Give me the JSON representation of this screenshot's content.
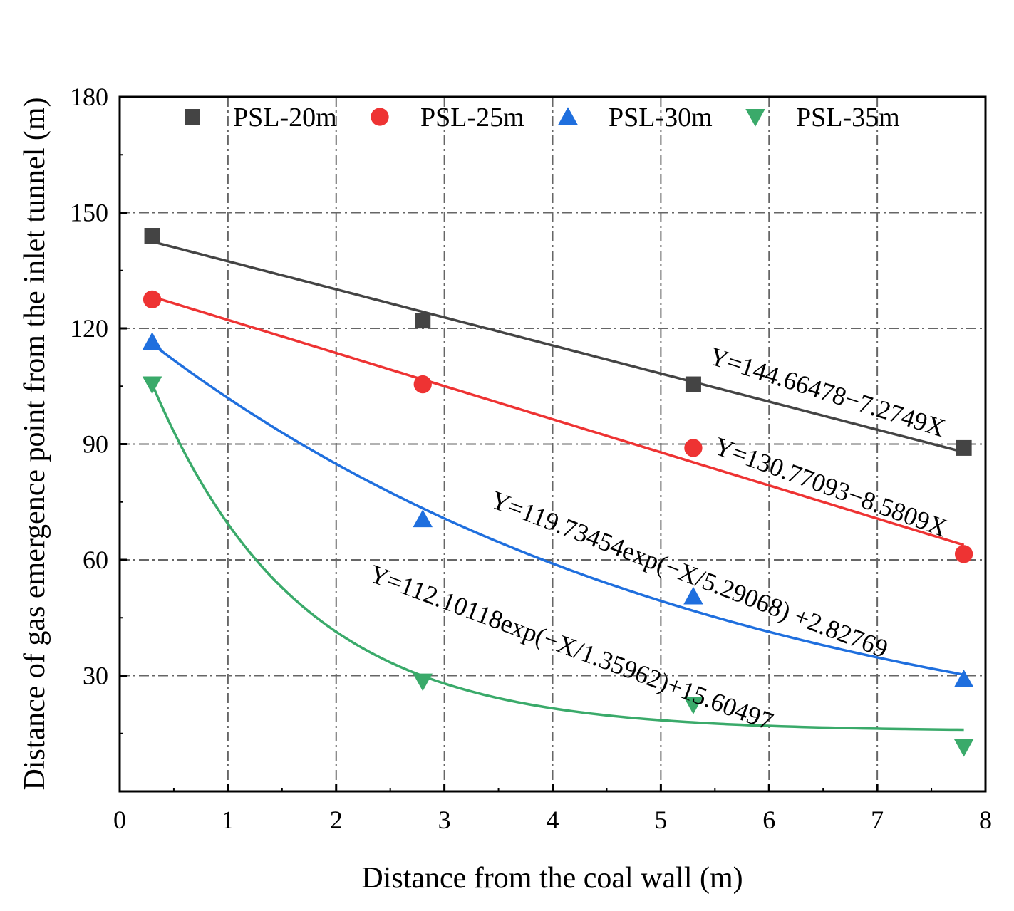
{
  "chart_data": {
    "type": "scatter",
    "title": "",
    "xlabel": "Distance from the coal wall (m)",
    "ylabel": "Distance of gas emergence point from the inlet tunnel (m)",
    "xlim": [
      0,
      8
    ],
    "ylim": [
      0,
      180
    ],
    "xticks": [
      0,
      1,
      2,
      3,
      4,
      5,
      6,
      7,
      8
    ],
    "yticks": [
      30,
      60,
      90,
      120,
      150,
      180
    ],
    "grid": true,
    "legend_position": "top",
    "series": [
      {
        "name": "PSL-20m",
        "marker": "square",
        "color": "#444444",
        "x": [
          0.3,
          2.8,
          5.3,
          7.8
        ],
        "y": [
          144,
          122,
          105.5,
          89
        ],
        "fit": {
          "kind": "linear",
          "a": 144.66478,
          "b": -7.2749
        },
        "equation": "Y=144.66478−7.2749X"
      },
      {
        "name": "PSL-25m",
        "marker": "circle",
        "color": "#EE3333",
        "x": [
          0.3,
          2.8,
          5.3,
          7.8
        ],
        "y": [
          127.5,
          105.5,
          89,
          61.5
        ],
        "fit": {
          "kind": "linear",
          "a": 130.77093,
          "b": -8.5809
        },
        "equation": "Y=130.77093−8.5809X"
      },
      {
        "name": "PSL-30m",
        "marker": "triangle-up",
        "color": "#1F6FDE",
        "x": [
          0.3,
          2.8,
          5.3,
          7.8
        ],
        "y": [
          116.5,
          70.5,
          50.5,
          29
        ],
        "fit": {
          "kind": "exp",
          "A": 119.73454,
          "t": 5.29068,
          "c": 2.82769
        },
        "equation": "Y=119.73454exp(−X/5.29068) +2.82769"
      },
      {
        "name": "PSL-35m",
        "marker": "triangle-down",
        "color": "#3AAA6A",
        "x": [
          0.3,
          2.8,
          5.3,
          7.8
        ],
        "y": [
          105.5,
          28.5,
          22.5,
          11.5
        ],
        "fit": {
          "kind": "exp",
          "A": 112.10118,
          "t": 1.35962,
          "c": 15.60497
        },
        "equation": "Y=112.10118exp(−X/1.35962)+15.60497"
      }
    ]
  }
}
